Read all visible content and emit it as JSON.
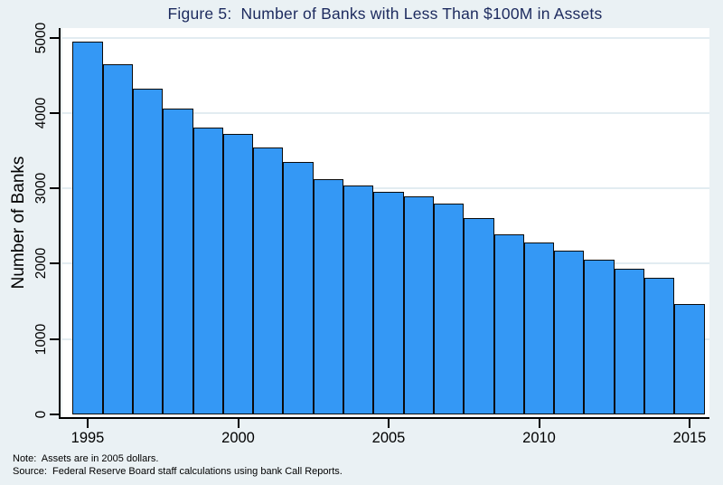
{
  "figure": {
    "note": "Note:  Assets are in 2005 dollars.",
    "source": "Source:  Federal Reserve Board staff calculations using bank Call Reports."
  },
  "chart_data": {
    "type": "bar",
    "title": "Figure 5:  Number of Banks with Less Than $100M in Assets",
    "xlabel": "",
    "ylabel": "Number of Banks",
    "categories": [
      1995,
      1996,
      1997,
      1998,
      1999,
      2000,
      2001,
      2002,
      2003,
      2004,
      2005,
      2006,
      2007,
      2008,
      2009,
      2010,
      2011,
      2012,
      2013,
      2014,
      2015
    ],
    "values": [
      4950,
      4640,
      4320,
      4060,
      3810,
      3720,
      3540,
      3350,
      3120,
      3040,
      2950,
      2890,
      2800,
      2610,
      2390,
      2280,
      2170,
      2050,
      1930,
      1810,
      1470
    ],
    "x_ticks": [
      1995,
      2000,
      2005,
      2010,
      2015
    ],
    "y_ticks": [
      0,
      1000,
      2000,
      3000,
      4000,
      5000
    ],
    "ylim": [
      0,
      5000
    ],
    "grid": "horizontal",
    "legend_position": "none",
    "notes": [
      "Note:  Assets are in 2005 dollars.",
      "Source:  Federal Reserve Board staff calculations using bank Call Reports."
    ],
    "colors": {
      "background": "#EAF1F4",
      "plot_background": "#FFFFFF",
      "bar_fill": "#3498F5",
      "bar_border": "#0B0B0B",
      "gridline": "#E2ECF1",
      "axis": "#000000",
      "title_color": "#1C2A5E",
      "text": "#000000"
    }
  }
}
